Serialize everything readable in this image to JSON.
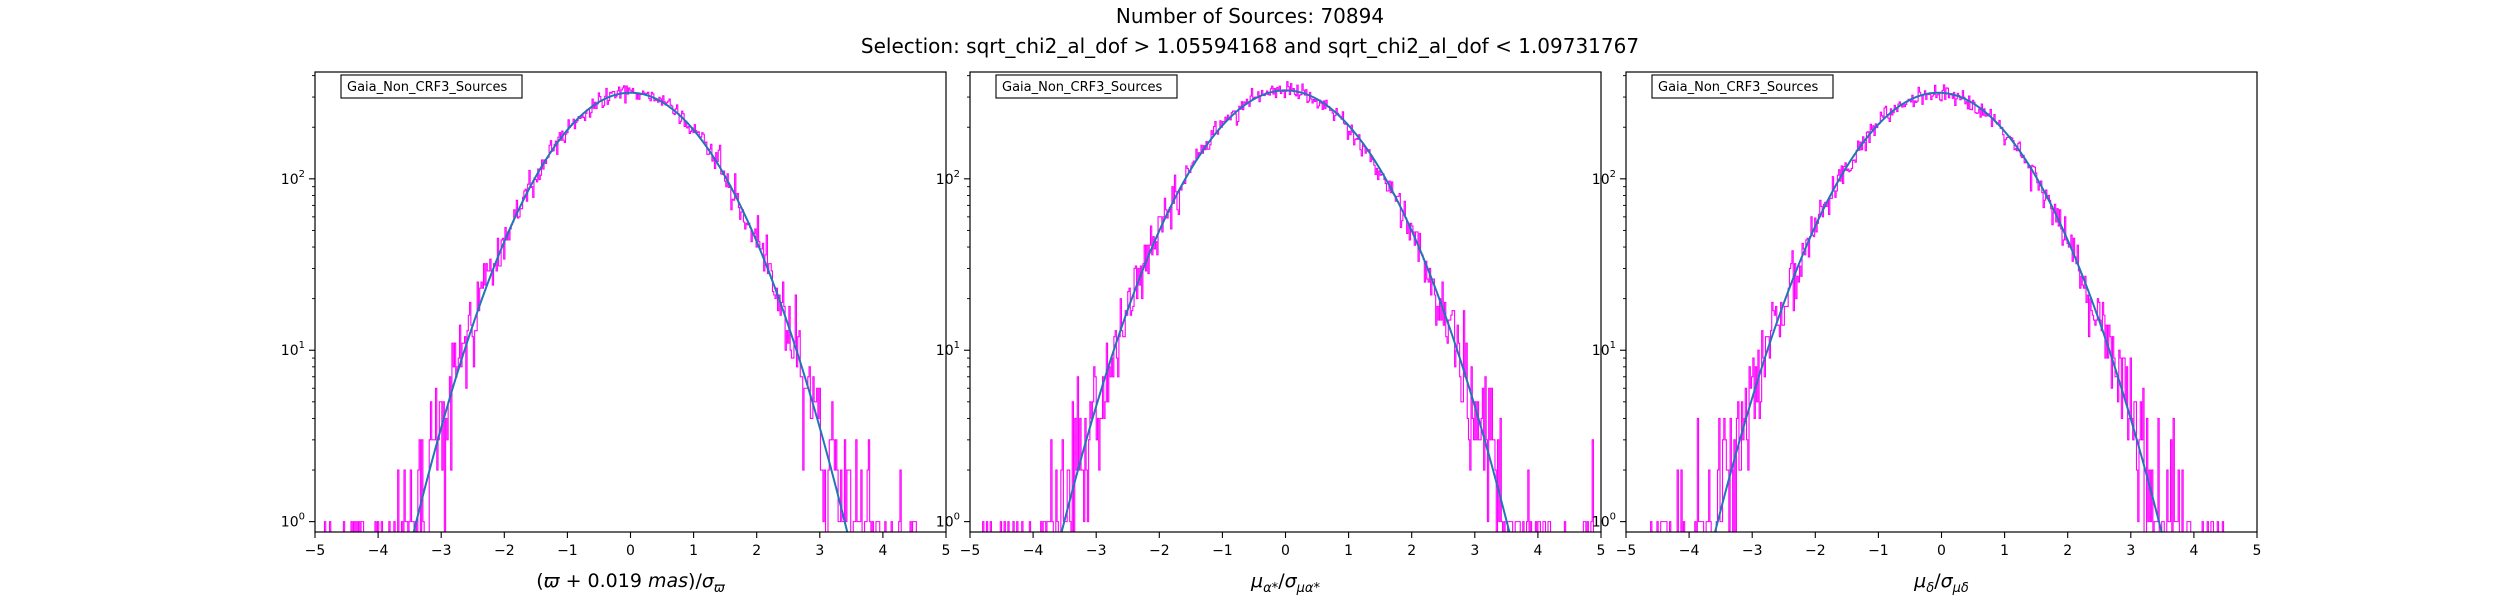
{
  "figure": {
    "title_line1": "Number of Sources: 70894",
    "title_line2": "Selection: sqrt_chi2_al_dof > 1.05594168 and sqrt_chi2_al_dof < 1.09731767"
  },
  "colors": {
    "histogram": "#ff00ff",
    "fit": "#1f77b4"
  },
  "chart_data": [
    {
      "type": "histogram",
      "legend": "Gaia_Non_CRF3_Sources",
      "xlabel_parts": [
        {
          "t": "(",
          "i": false
        },
        {
          "t": "ϖ",
          "i": true
        },
        {
          "t": " + 0.019 ",
          "i": false
        },
        {
          "t": "mas",
          "i": true
        },
        {
          "t": ")/",
          "i": false
        },
        {
          "t": "σ",
          "i": true
        },
        {
          "t": "ϖ",
          "i": true,
          "sub": true
        }
      ],
      "xlim": [
        -5,
        5
      ],
      "ylim": [
        0.87,
        420
      ],
      "yscale": "log",
      "xticks": [
        -5,
        -4,
        -3,
        -2,
        -1,
        0,
        1,
        2,
        3,
        4,
        5
      ],
      "yticks": [
        {
          "v": 1,
          "label": "10",
          "exp": "0"
        },
        {
          "v": 10,
          "label": "10",
          "exp": "1"
        },
        {
          "v": 100,
          "label": "10",
          "exp": "2"
        }
      ],
      "fit": {
        "peak": 318,
        "mu": 0.0,
        "sigma": 1.0
      },
      "hist": {
        "bin_width": 0.02,
        "hist_range": [
          -4.95,
          4.6
        ],
        "seed": 11
      }
    },
    {
      "type": "histogram",
      "legend": "Gaia_Non_CRF3_Sources",
      "xlabel_parts": [
        {
          "t": "μ",
          "i": true
        },
        {
          "t": "α*",
          "i": true,
          "sub": true
        },
        {
          "t": "/",
          "i": false
        },
        {
          "t": "σ",
          "i": true
        },
        {
          "t": "μα*",
          "i": true,
          "sub": true
        }
      ],
      "xlim": [
        -5,
        5
      ],
      "ylim": [
        0.87,
        420
      ],
      "yscale": "log",
      "xticks": [
        -5,
        -4,
        -3,
        -2,
        -1,
        0,
        1,
        2,
        3,
        4,
        5
      ],
      "yticks": [
        {
          "v": 1,
          "label": "10",
          "exp": "0"
        },
        {
          "v": 10,
          "label": "10",
          "exp": "1"
        },
        {
          "v": 100,
          "label": "10",
          "exp": "2"
        }
      ],
      "fit": {
        "peak": 328,
        "mu": 0.0,
        "sigma": 1.03
      },
      "hist": {
        "bin_width": 0.02,
        "hist_range": [
          -4.9,
          4.9
        ],
        "seed": 23
      }
    },
    {
      "type": "histogram",
      "legend": "Gaia_Non_CRF3_Sources",
      "xlabel_parts": [
        {
          "t": "μ",
          "i": true
        },
        {
          "t": "δ",
          "i": true,
          "sub": true
        },
        {
          "t": "/",
          "i": false
        },
        {
          "t": "σ",
          "i": true
        },
        {
          "t": "μδ",
          "i": true,
          "sub": true
        }
      ],
      "xlim": [
        -5,
        5
      ],
      "ylim": [
        0.87,
        420
      ],
      "yscale": "log",
      "xticks": [
        -5,
        -4,
        -3,
        -2,
        -1,
        0,
        1,
        2,
        3,
        4,
        5
      ],
      "yticks": [
        {
          "v": 1,
          "label": "10",
          "exp": "0"
        },
        {
          "v": 10,
          "label": "10",
          "exp": "1"
        },
        {
          "v": 100,
          "label": "10",
          "exp": "2"
        }
      ],
      "fit": {
        "peak": 318,
        "mu": -0.05,
        "sigma": 1.03
      },
      "hist": {
        "bin_width": 0.02,
        "hist_range": [
          -4.95,
          4.5
        ],
        "seed": 37
      }
    }
  ]
}
